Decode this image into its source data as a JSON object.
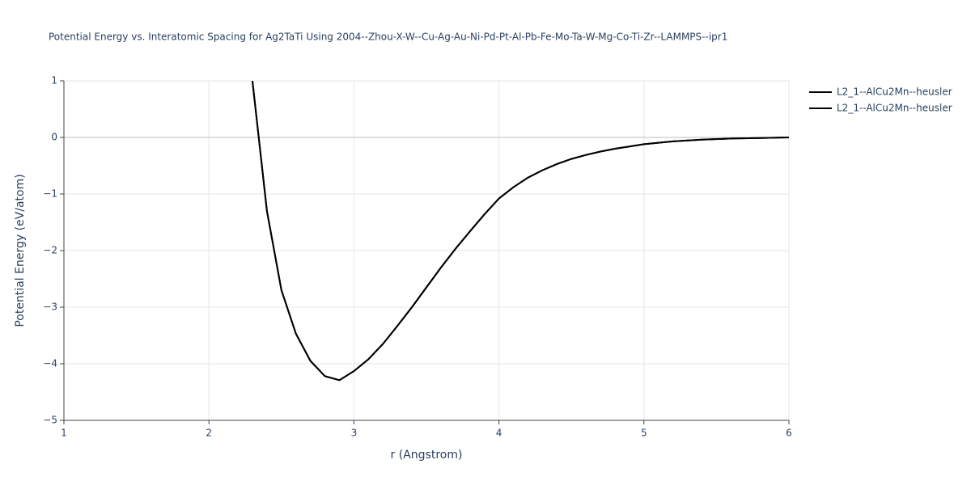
{
  "chart_data": {
    "type": "line",
    "title": "Potential Energy vs. Interatomic Spacing for Ag2TaTi Using 2004--Zhou-X-W--Cu-Ag-Au-Ni-Pd-Pt-Al-Pb-Fe-Mo-Ta-W-Mg-Co-Ti-Zr--LAMMPS--ipr1",
    "x_label": "r (Angstrom)",
    "y_label": "Potential Energy (eV/atom)",
    "x": [
      2.3,
      2.4,
      2.5,
      2.6,
      2.7,
      2.8,
      2.9,
      3.0,
      3.1,
      3.2,
      3.3,
      3.4,
      3.5,
      3.6,
      3.7,
      3.8,
      3.9,
      4.0,
      4.1,
      4.2,
      4.3,
      4.4,
      4.5,
      4.6,
      4.7,
      4.8,
      4.9,
      5.0,
      5.2,
      5.4,
      5.6,
      5.8,
      6.0
    ],
    "series": [
      {
        "name": "L2_1--AlCu2Mn--heusler",
        "color": "#000000",
        "values": [
          1.0,
          -1.3,
          -2.7,
          -3.47,
          -3.95,
          -4.22,
          -4.29,
          -4.13,
          -3.92,
          -3.65,
          -3.33,
          -3.0,
          -2.65,
          -2.3,
          -1.97,
          -1.66,
          -1.36,
          -1.08,
          -0.88,
          -0.71,
          -0.58,
          -0.47,
          -0.38,
          -0.31,
          -0.25,
          -0.2,
          -0.16,
          -0.12,
          -0.07,
          -0.04,
          -0.02,
          -0.01,
          0.0
        ]
      },
      {
        "name": "L2_1--AlCu2Mn--heusler",
        "color": "#000000",
        "values": [
          1.0,
          -1.3,
          -2.7,
          -3.47,
          -3.95,
          -4.22,
          -4.29,
          -4.13,
          -3.92,
          -3.65,
          -3.33,
          -3.0,
          -2.65,
          -2.3,
          -1.97,
          -1.66,
          -1.36,
          -1.08,
          -0.88,
          -0.71,
          -0.58,
          -0.47,
          -0.38,
          -0.31,
          -0.25,
          -0.2,
          -0.16,
          -0.12,
          -0.07,
          -0.04,
          -0.02,
          -0.01,
          0.0
        ]
      }
    ],
    "xlim": [
      1,
      6
    ],
    "xticks": [
      1,
      2,
      3,
      4,
      5,
      6
    ],
    "ylim": [
      -5,
      1
    ],
    "yticks": [
      {
        "value": -5,
        "label": "−5"
      },
      {
        "value": -4,
        "label": "−4"
      },
      {
        "value": -3,
        "label": "−3"
      },
      {
        "value": -2,
        "label": "−2"
      },
      {
        "value": -1,
        "label": "−1"
      },
      0,
      1
    ],
    "grid": true,
    "legend": "top-right"
  }
}
